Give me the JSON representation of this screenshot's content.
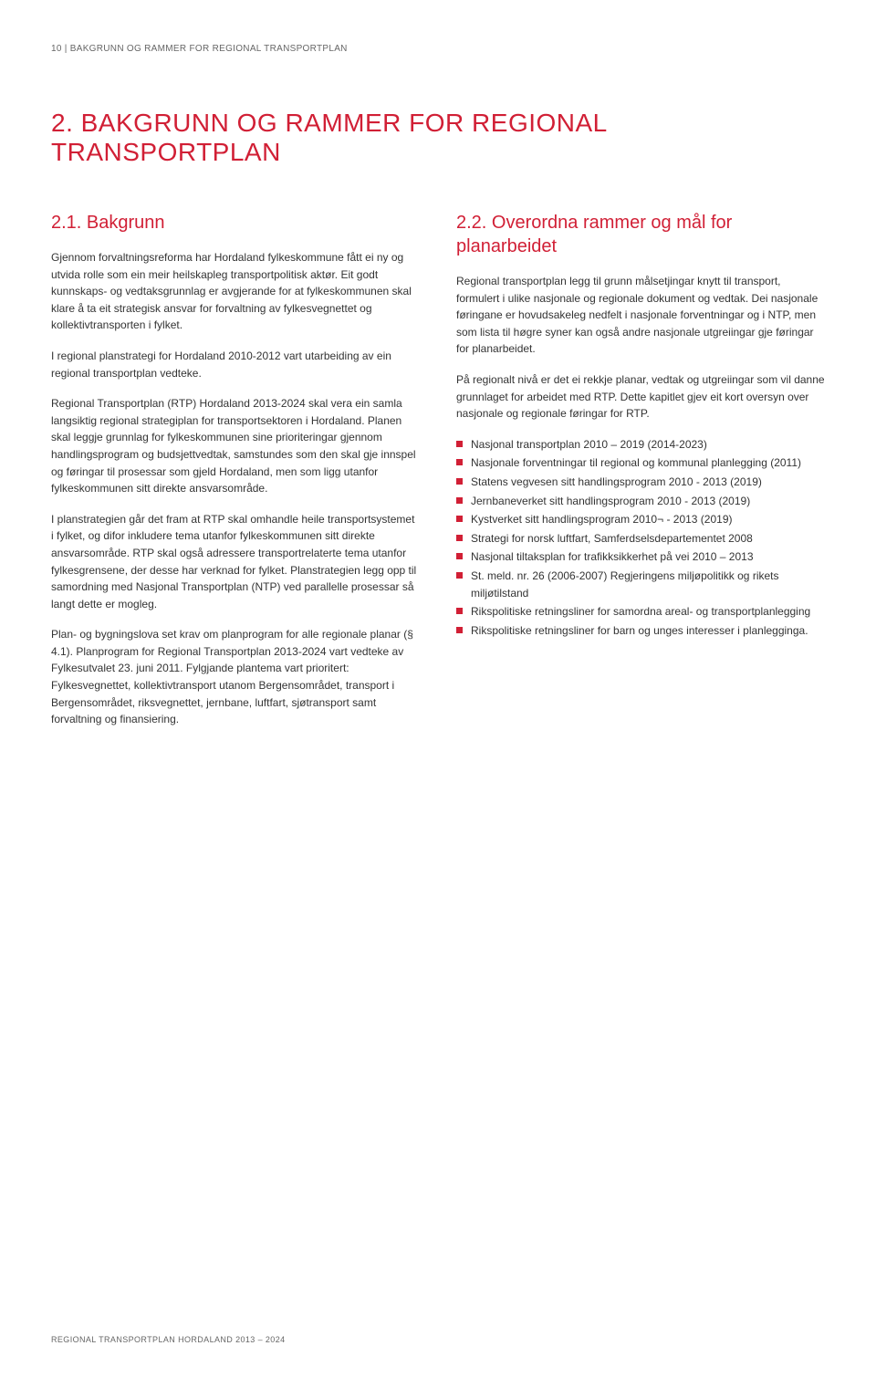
{
  "header": "10 | BAKGRUNN OG RAMMER FOR REGIONAL TRANSPORTPLAN",
  "title": "2. BAKGRUNN OG RAMMER FOR REGIONAL TRANSPORTPLAN",
  "left": {
    "heading": "2.1. Bakgrunn",
    "p1": "Gjennom forvaltningsreforma har Hordaland fylkeskommune fått ei ny og utvida rolle som ein meir heilskapleg transportpolitisk aktør. Eit godt kunnskaps- og vedtaksgrunnlag er avgjerande for at fylkeskommunen skal klare å ta eit strategisk ansvar for forvaltning av fylkesvegnettet og kollektivtransporten i fylket.",
    "p2": "I regional planstrategi for Hordaland 2010-2012 vart utarbeiding av ein regional transportplan vedteke.",
    "p3": "Regional Transportplan (RTP) Hordaland 2013-2024 skal vera ein samla langsiktig regional strategiplan for transportsektoren i Hordaland. Planen skal leggje grunnlag for fylkeskommunen sine prioriteringar gjennom handlingsprogram og budsjettvedtak, samstundes som den skal gje innspel og føringar til prosessar som gjeld Hordaland, men som ligg utanfor fylkeskommunen sitt direkte ansvarsområde.",
    "p4": "I planstrategien går det fram at RTP skal omhandle heile transportsystemet i fylket, og difor inkludere tema utanfor fylkeskommunen sitt direkte ansvarsområde. RTP skal også adressere transportrelaterte tema utanfor fylkesgrensene, der desse har verknad for fylket. Planstrategien legg opp til samordning med Nasjonal Transportplan (NTP) ved parallelle prosessar så langt dette er mogleg.",
    "p5": "Plan- og bygningslova set krav om planprogram for alle regionale planar (§ 4.1). Planprogram for Regional Transportplan 2013-2024 vart vedteke av Fylkesutvalet 23. juni 2011. Fylgjande plantema vart prioritert: Fylkesvegnettet, kollektivtransport utanom Bergensområdet, transport i Bergensområdet, riksvegnettet, jernbane, luftfart, sjøtransport samt forvaltning og finansiering."
  },
  "right": {
    "heading": "2.2. Overordna rammer og mål for planarbeidet",
    "p1": "Regional transportplan legg til grunn målsetjingar knytt til transport, formulert i ulike nasjonale og regionale dokument og vedtak. Dei nasjonale føringane er hovudsakeleg nedfelt i nasjonale forventningar og i NTP, men som lista til høgre syner kan også andre nasjonale utgreiingar gje føringar for planarbeidet.",
    "p2": "På regionalt nivå er det ei rekkje planar, vedtak og utgreiingar som vil danne grunnlaget for arbeidet med RTP. Dette kapitlet gjev eit kort oversyn over nasjonale og regionale føringar for RTP.",
    "bullets": [
      "Nasjonal transportplan 2010 – 2019 (2014-2023)",
      "Nasjonale forventningar til regional og kommunal planlegging (2011)",
      "Statens vegvesen sitt handlingsprogram 2010 - 2013 (2019)",
      "Jernbaneverket sitt handlingsprogram 2010 - 2013 (2019)",
      "Kystverket sitt handlingsprogram 2010¬ - 2013 (2019)",
      "Strategi for norsk luftfart, Samferdselsdepartementet 2008",
      "Nasjonal tiltaksplan for trafikksikkerhet på vei 2010 – 2013",
      "St. meld. nr. 26 (2006-2007) Regjeringens miljøpolitikk og rikets miljøtilstand",
      "Rikspolitiske retningsliner for samordna areal- og transportplanlegging",
      "Rikspolitiske retningsliner for barn og unges interesser i planlegginga."
    ]
  },
  "footer": "REGIONAL TRANSPORTPLAN HORDALAND 2013 – 2024",
  "colors": {
    "accent": "#d11f35",
    "text": "#333333",
    "muted": "#666666",
    "background": "#ffffff"
  }
}
